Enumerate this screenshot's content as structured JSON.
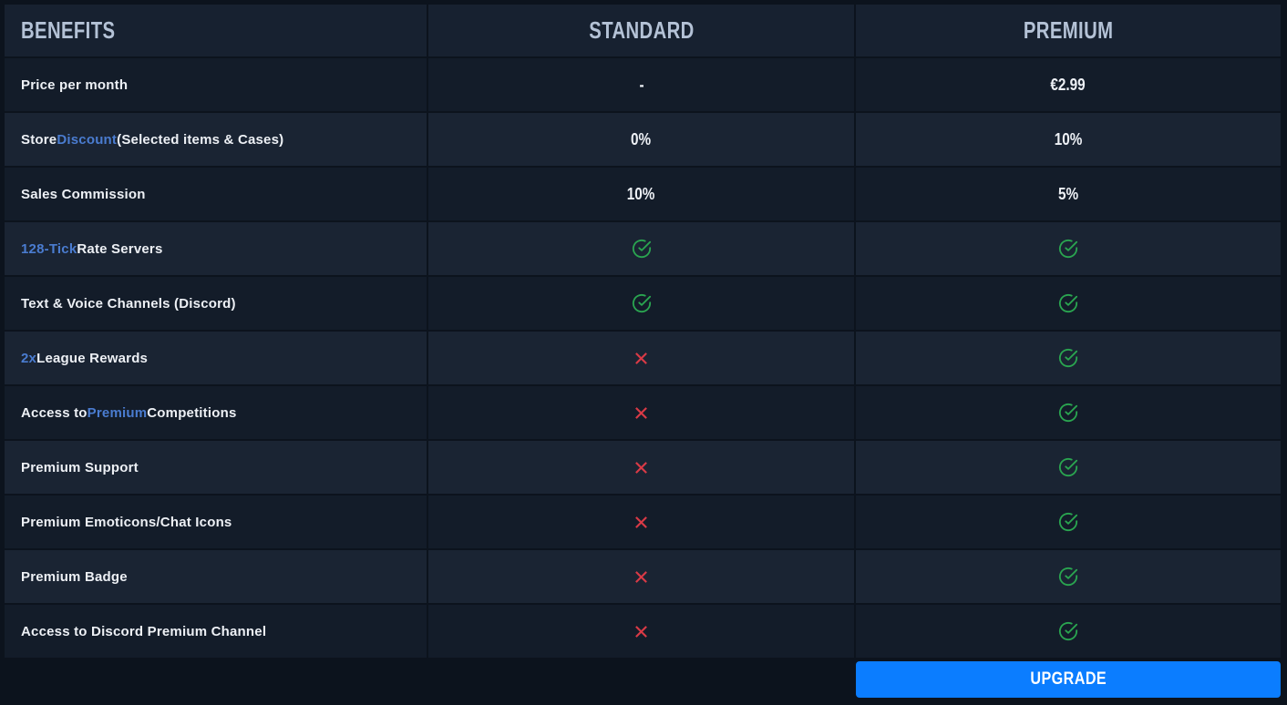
{
  "colors": {
    "bg_page": "#0c131d",
    "bg_header": "#172130",
    "bg_row_dark": "#131c29",
    "bg_row_light": "#1a2433",
    "header_text": "#b4c2d6",
    "label_text": "#edf0f5",
    "accent_blue": "#4a7cd0",
    "check_green": "#2aa550",
    "cross_red": "#d93a46",
    "button_blue": "#0b7dff"
  },
  "table": {
    "columns": [
      {
        "label": "BENEFITS"
      },
      {
        "label": "STANDARD"
      },
      {
        "label": "PREMIUM"
      }
    ],
    "rows": [
      {
        "benefit_parts": [
          {
            "text": "Price per month",
            "accent": false
          }
        ],
        "standard": {
          "type": "text",
          "value": "-"
        },
        "premium": {
          "type": "text",
          "value": "€2.99"
        }
      },
      {
        "benefit_parts": [
          {
            "text": "Store",
            "accent": false
          },
          {
            "text": "Discount",
            "accent": true
          },
          {
            "text": "(Selected items & Cases)",
            "accent": false
          }
        ],
        "standard": {
          "type": "text",
          "value": "0%"
        },
        "premium": {
          "type": "text",
          "value": "10%"
        }
      },
      {
        "benefit_parts": [
          {
            "text": "Sales Commission",
            "accent": false
          }
        ],
        "standard": {
          "type": "text",
          "value": "10%"
        },
        "premium": {
          "type": "text",
          "value": "5%"
        }
      },
      {
        "benefit_parts": [
          {
            "text": "128-Tick",
            "accent": true
          },
          {
            "text": "Rate Servers",
            "accent": false
          }
        ],
        "standard": {
          "type": "check"
        },
        "premium": {
          "type": "check"
        }
      },
      {
        "benefit_parts": [
          {
            "text": "Text & Voice Channels (Discord)",
            "accent": false
          }
        ],
        "standard": {
          "type": "check"
        },
        "premium": {
          "type": "check"
        }
      },
      {
        "benefit_parts": [
          {
            "text": "2x",
            "accent": true
          },
          {
            "text": "League Rewards",
            "accent": false
          }
        ],
        "standard": {
          "type": "cross"
        },
        "premium": {
          "type": "check"
        }
      },
      {
        "benefit_parts": [
          {
            "text": "Access to",
            "accent": false
          },
          {
            "text": "Premium",
            "accent": true
          },
          {
            "text": "Competitions",
            "accent": false
          }
        ],
        "standard": {
          "type": "cross"
        },
        "premium": {
          "type": "check"
        }
      },
      {
        "benefit_parts": [
          {
            "text": "Premium Support",
            "accent": false
          }
        ],
        "standard": {
          "type": "cross"
        },
        "premium": {
          "type": "check"
        }
      },
      {
        "benefit_parts": [
          {
            "text": "Premium Emoticons/Chat Icons",
            "accent": false
          }
        ],
        "standard": {
          "type": "cross"
        },
        "premium": {
          "type": "check"
        }
      },
      {
        "benefit_parts": [
          {
            "text": "Premium Badge",
            "accent": false
          }
        ],
        "standard": {
          "type": "cross"
        },
        "premium": {
          "type": "check"
        }
      },
      {
        "benefit_parts": [
          {
            "text": "Access to Discord Premium Channel",
            "accent": false
          }
        ],
        "standard": {
          "type": "cross"
        },
        "premium": {
          "type": "check"
        }
      }
    ],
    "upgrade_label": "UPGRADE"
  }
}
